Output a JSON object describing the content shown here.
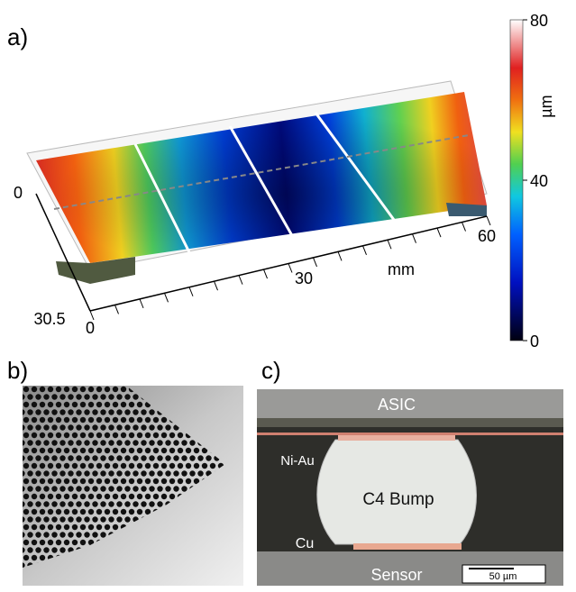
{
  "panels": {
    "a": {
      "label": "a)",
      "colorbar": {
        "lim": [
          0,
          80
        ],
        "ticks": [
          0,
          40,
          80
        ],
        "unit": "µm"
      },
      "x_axis": {
        "ticks": [
          0,
          30,
          60
        ],
        "label": "mm"
      },
      "depth_axis": {
        "ticks": [
          0,
          30.5
        ]
      }
    },
    "b": {
      "label": "b)"
    },
    "c": {
      "label": "c)",
      "labels": {
        "top": "ASIC",
        "pad": "Ni-Au",
        "bump": "C4 Bump",
        "base": "Cu",
        "bottom": "Sensor",
        "scale": "50 µm"
      }
    }
  }
}
